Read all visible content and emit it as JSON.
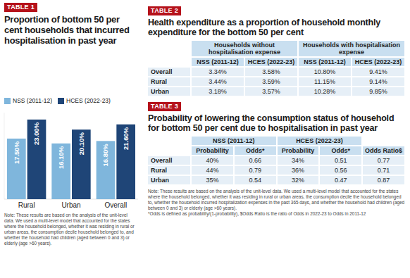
{
  "chart_data": {
    "type": "bar",
    "title": "Proportion of bottom 50 per cent households that incurred hospitalisation in past year",
    "categories": [
      "Rural",
      "Urban",
      "Overall"
    ],
    "series": [
      {
        "name": "NSS (2011-12)",
        "color": "#7fb6dc",
        "values": [
          17.5,
          16.1,
          16.8
        ],
        "value_labels": [
          "17.50%",
          "16.10%",
          "16.80%"
        ]
      },
      {
        "name": "HCES (2022-23)",
        "color": "#1f4577",
        "values": [
          23,
          20.1,
          21.6
        ],
        "value_labels": [
          "23.00%",
          "20.10%",
          "21.60%"
        ]
      }
    ],
    "ylim": [
      0,
      25
    ],
    "yticks": [],
    "grid": false,
    "legend": "top-left",
    "data_labels": true,
    "tick_labels": "x"
  },
  "table1": {
    "label": "TABLE 1",
    "note": "Note: These results are based on the analysis of the unit-level data. We used a multi-level model that accounted for the states where the household belonged, whether it was residing in rural or urban areas, the consumption decile household belonged to, and whether the household had children (aged between 0 and 3) or elderly (age >60 years)."
  },
  "table2": {
    "label": "TABLE 2",
    "title": "Health expenditure as a proportion of household monthly expenditure for the bottom 50 per cent",
    "columns": [
      {
        "group": "Households without hospitalisation expense",
        "headers": [
          "NSS (2011-12)",
          "HCES (2022-23)"
        ]
      },
      {
        "group": "Households with hospitalisation expense",
        "headers": [
          "NSS (2011-12)",
          "HCES (2022-23)"
        ]
      }
    ],
    "rows": [
      {
        "label": "Overall",
        "values": [
          "3.34%",
          "3.58%",
          "10.80%",
          "9.41%"
        ]
      },
      {
        "label": "Rural",
        "values": [
          "3.44%",
          "3.59%",
          "11.15%",
          "9.14%"
        ]
      },
      {
        "label": "Urban",
        "values": [
          "3.18%",
          "3.57%",
          "10.28%",
          "9.85%"
        ]
      }
    ]
  },
  "table3": {
    "label": "TABLE 3",
    "title": "Probability of lowering the consumption status of household for bottom 50 per cent due to hospitalisation in past year",
    "columns": [
      {
        "group": "NSS (2011-12)",
        "headers": [
          "Probability",
          "Odds*"
        ]
      },
      {
        "group": "HCES (2022-23)",
        "headers": [
          "Probability",
          "Odds*"
        ]
      },
      {
        "headers": [
          "Odds Ratio$"
        ]
      }
    ],
    "rows": [
      {
        "label": "Overall",
        "values": [
          "40%",
          "0.66",
          "34%",
          "0.51",
          "0.77"
        ]
      },
      {
        "label": "Rural",
        "values": [
          "44%",
          "0.79",
          "36%",
          "0.56",
          "0.71"
        ]
      },
      {
        "label": "Urban",
        "values": [
          "35%",
          "0.54",
          "32%",
          "0.47",
          "0.87"
        ]
      }
    ],
    "note": "Note: These results are based on the analysis of the unit-level data. We used a multi-level model that accounted for the states where the household belonged, whether it was residing in rural or urban areas, the consumption decile the household belonged to, whether the household incurred hospitalization expenses in the past 365 days, and whether the household had children (aged between 0 and 3) or elderly (age >60 years).",
    "footnote": "*Odds is defined as probability/(1-probability), $Odds Ratio is the ratio of Odds in 2022-23 to Odds in 2011-12"
  }
}
